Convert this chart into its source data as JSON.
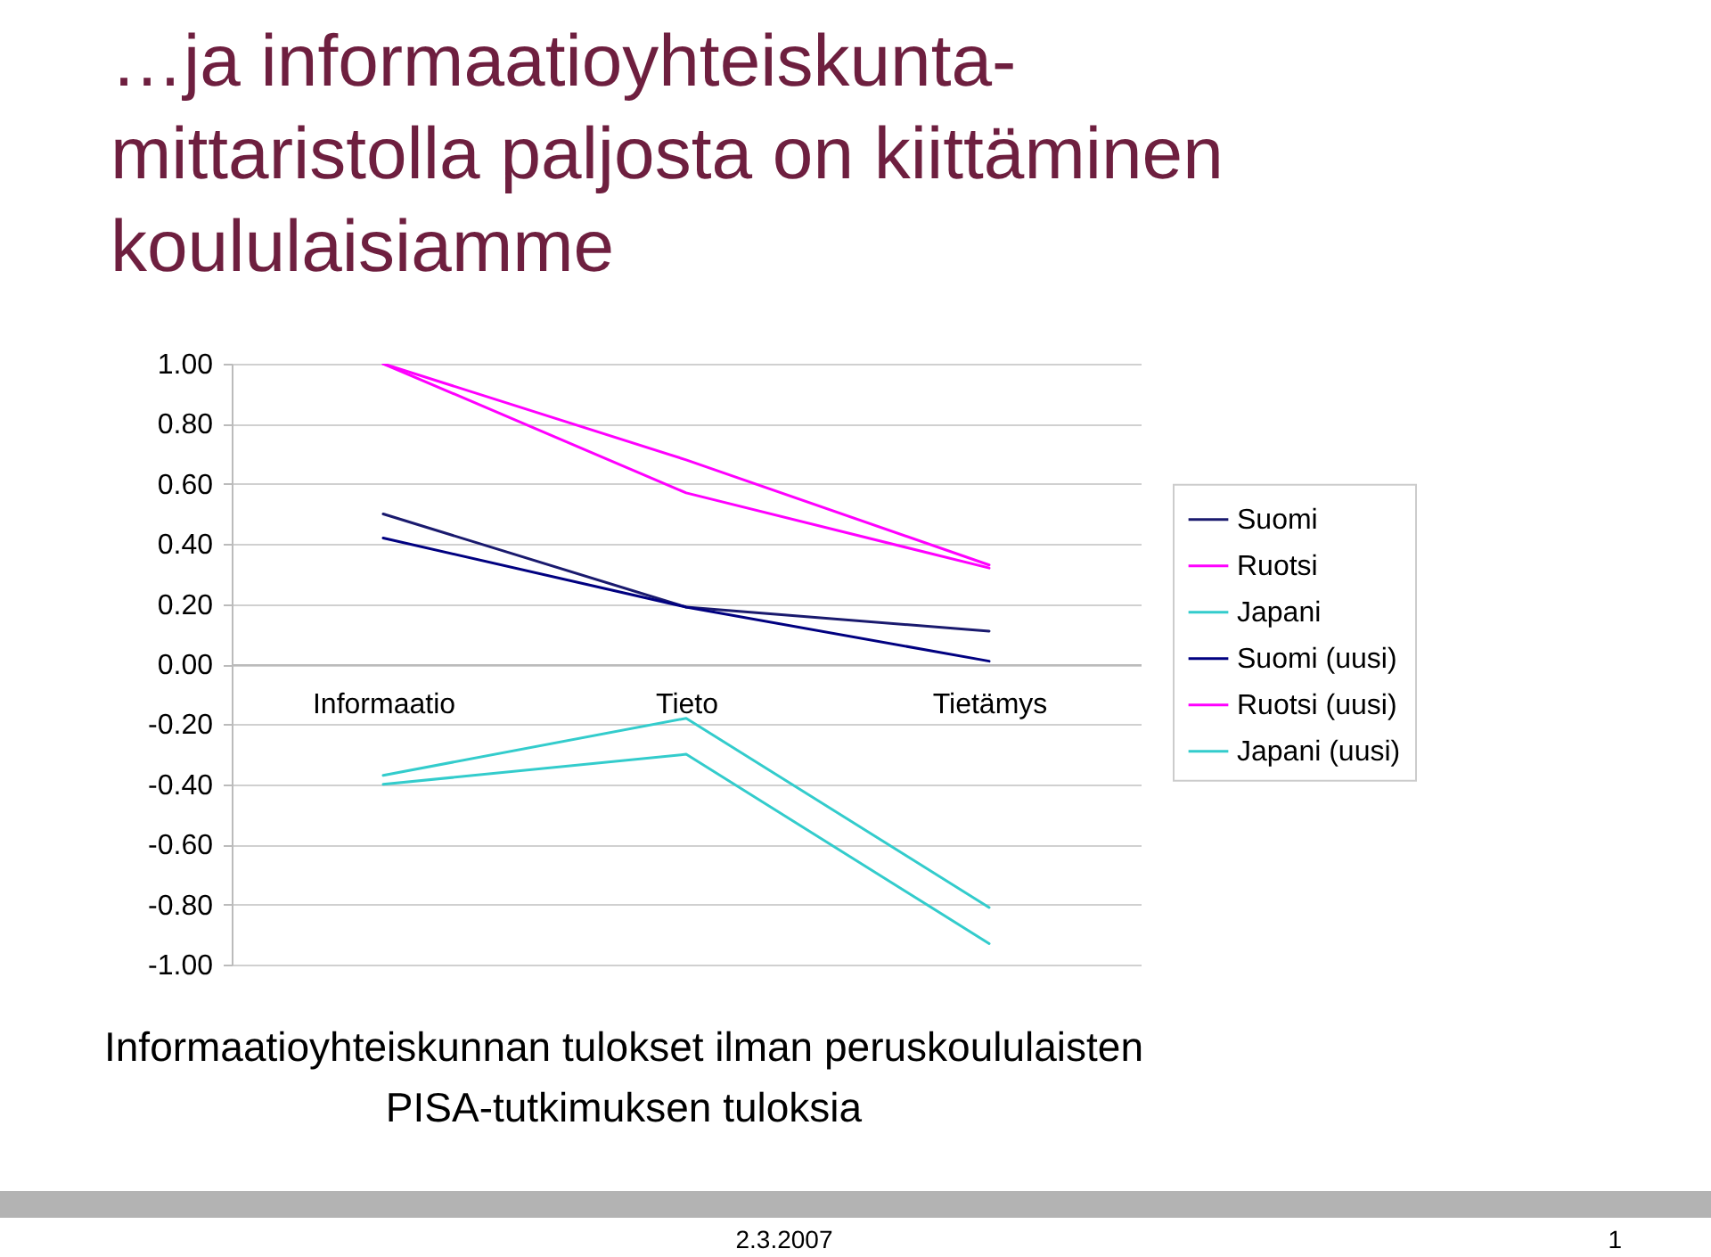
{
  "chart_data": {
    "type": "line",
    "title": "…ja informaatioyhteiskunta-mittaristolla paljosta on kiittäminen koululaisiamme",
    "categories": [
      "Informaatio",
      "Tieto",
      "Tietämys"
    ],
    "series": [
      {
        "name": "Suomi",
        "color": "#1a1a6e",
        "values": [
          0.5,
          0.19,
          0.11
        ]
      },
      {
        "name": "Ruotsi",
        "color": "#ff00ff",
        "values": [
          1.0,
          0.68,
          0.33
        ]
      },
      {
        "name": "Japani",
        "color": "#33cccc",
        "values": [
          -0.4,
          -0.3,
          -0.93
        ]
      },
      {
        "name": "Suomi (uusi)",
        "color": "#000080",
        "values": [
          0.42,
          0.19,
          0.01
        ]
      },
      {
        "name": "Ruotsi (uusi)",
        "color": "#ff00ff",
        "values": [
          1.0,
          0.57,
          0.32
        ]
      },
      {
        "name": "Japani (uusi)",
        "color": "#33cccc",
        "values": [
          -0.37,
          -0.18,
          -0.81
        ]
      }
    ],
    "ylim": [
      -1,
      1
    ],
    "yticks": [
      {
        "value": 1,
        "label": "1.00"
      },
      {
        "value": 0.8,
        "label": "0.80"
      },
      {
        "value": 0.6,
        "label": "0.60"
      },
      {
        "value": 0.4,
        "label": "0.40"
      },
      {
        "value": 0.2,
        "label": "0.20"
      },
      {
        "value": 0,
        "label": "0.00"
      },
      {
        "value": -0.2,
        "label": "-0.20"
      },
      {
        "value": -0.4,
        "label": "-0.40"
      },
      {
        "value": -0.6,
        "label": "-0.60"
      },
      {
        "value": -0.8,
        "label": "-0.80"
      },
      {
        "value": -1,
        "label": "-1.00"
      }
    ],
    "grid": "y",
    "legend": "right",
    "marker": "none",
    "line_style": "solid",
    "annotations": [
      "Informaatioyhteiskunnan tulokset ilman peruskoululaisten PISA-tutkimuksen tuloksia",
      "2.3.2007",
      "1"
    ]
  }
}
